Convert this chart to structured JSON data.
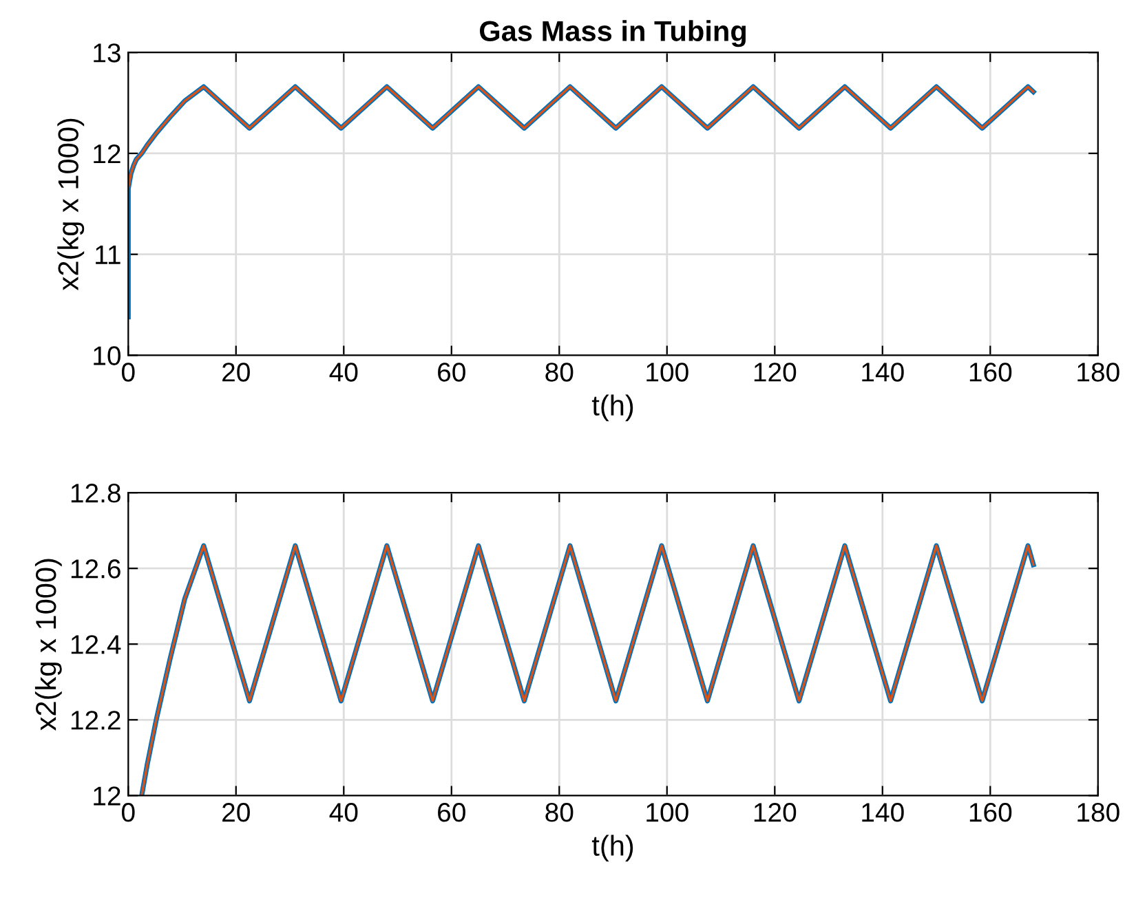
{
  "chart_data": [
    {
      "type": "line",
      "title": "Gas Mass in Tubing",
      "xlabel": "t(h)",
      "ylabel": "x2(kg x 1000)",
      "xlim": [
        0,
        180
      ],
      "xticks": [
        0,
        20,
        40,
        60,
        80,
        100,
        120,
        140,
        160,
        180
      ],
      "ylim": [
        10,
        13
      ],
      "yticks": [
        10,
        11,
        12,
        13
      ],
      "grid": true,
      "series": [
        {
          "color": "#0072bd",
          "x": [
            0,
            0,
            0.5,
            1,
            1.5,
            2.5,
            3.5,
            5.2,
            7.75,
            10.5,
            14,
            22.5,
            31,
            39.5,
            48,
            56.5,
            65,
            73.5,
            82,
            90.5,
            99,
            107.5,
            116,
            124.5,
            133,
            141.5,
            150,
            158.5,
            167,
            168
          ],
          "values": [
            10.38,
            11.65,
            11.8,
            11.88,
            11.94,
            12.0,
            12.08,
            12.2,
            12.36,
            12.52,
            12.66,
            12.25,
            12.66,
            12.25,
            12.66,
            12.25,
            12.66,
            12.25,
            12.66,
            12.25,
            12.66,
            12.25,
            12.66,
            12.25,
            12.66,
            12.25,
            12.66,
            12.25,
            12.66,
            12.61
          ]
        },
        {
          "color": "#d95319",
          "x": [
            0,
            0,
            0.5,
            1,
            1.5,
            2.5,
            3.5,
            5.2,
            7.75,
            10.5,
            14,
            22.5,
            31,
            39.5,
            48,
            56.5,
            65,
            73.5,
            82,
            90.5,
            99,
            107.5,
            116,
            124.5,
            133,
            141.5,
            150,
            158.5,
            167,
            168
          ],
          "values": [
            10.38,
            11.65,
            11.8,
            11.88,
            11.94,
            12.0,
            12.08,
            12.2,
            12.36,
            12.52,
            12.66,
            12.25,
            12.66,
            12.25,
            12.66,
            12.25,
            12.66,
            12.25,
            12.66,
            12.25,
            12.66,
            12.25,
            12.66,
            12.25,
            12.66,
            12.25,
            12.66,
            12.25,
            12.66,
            12.61
          ]
        }
      ]
    },
    {
      "type": "line",
      "xlabel": "t(h)",
      "ylabel": "x2(kg x 1000)",
      "xlim": [
        0,
        180
      ],
      "xticks": [
        0,
        20,
        40,
        60,
        80,
        100,
        120,
        140,
        160,
        180
      ],
      "ylim": [
        12,
        12.8
      ],
      "yticks": [
        12,
        12.2,
        12.4,
        12.6,
        12.8
      ],
      "grid": true,
      "series": [
        {
          "color": "#0072bd",
          "x": [
            2.5,
            3.5,
            5.2,
            7.75,
            10.5,
            14,
            22.5,
            31,
            39.5,
            48,
            56.5,
            65,
            73.5,
            82,
            90.5,
            99,
            107.5,
            116,
            124.5,
            133,
            141.5,
            150,
            158.5,
            167,
            168
          ],
          "values": [
            12.0,
            12.08,
            12.2,
            12.36,
            12.52,
            12.66,
            12.25,
            12.66,
            12.25,
            12.66,
            12.25,
            12.66,
            12.25,
            12.66,
            12.25,
            12.66,
            12.25,
            12.66,
            12.25,
            12.66,
            12.25,
            12.66,
            12.25,
            12.66,
            12.61
          ]
        },
        {
          "color": "#d95319",
          "x": [
            2.5,
            3.5,
            5.2,
            7.75,
            10.5,
            14,
            22.5,
            31,
            39.5,
            48,
            56.5,
            65,
            73.5,
            82,
            90.5,
            99,
            107.5,
            116,
            124.5,
            133,
            141.5,
            150,
            158.5,
            167,
            168
          ],
          "values": [
            12.0,
            12.08,
            12.2,
            12.36,
            12.52,
            12.66,
            12.25,
            12.66,
            12.25,
            12.66,
            12.25,
            12.66,
            12.25,
            12.66,
            12.25,
            12.66,
            12.25,
            12.66,
            12.25,
            12.66,
            12.25,
            12.66,
            12.25,
            12.66,
            12.61
          ]
        }
      ]
    }
  ]
}
